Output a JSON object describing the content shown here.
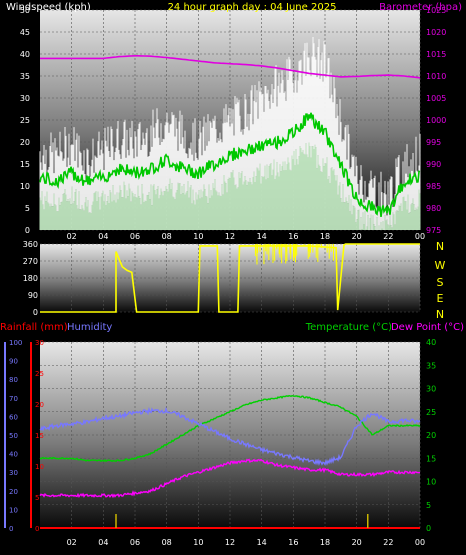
{
  "colors": {
    "background": "#000000",
    "wind_speed": "#ffffff",
    "wind_gust": "#ffffff",
    "wind_avg": "#00c800",
    "wind_low": "#c8f0c8",
    "barometer": "#e000e0",
    "direction": "#ffff00",
    "rainfall": "#ff0000",
    "humidity": "#7878ff",
    "temperature": "#00d000",
    "dew_point": "#ff00ff",
    "title": "#ffff00",
    "tick_text": "#ffffff"
  },
  "chart_data": [
    {
      "type": "line",
      "title": "24 hour graph day : 04 June 2025",
      "ylabel": "Windspeed (kph)",
      "y2label": "Barometer (hpa)",
      "ylim": [
        0,
        50
      ],
      "y2lim": [
        975,
        1025
      ],
      "yticks": [
        0,
        5,
        10,
        15,
        20,
        25,
        30,
        35,
        40,
        45,
        50
      ],
      "y2ticks": [
        975,
        980,
        985,
        990,
        995,
        1000,
        1005,
        1010,
        1015,
        1020,
        1025
      ],
      "xlim": [
        0,
        24
      ],
      "xticks": [
        "02",
        "04",
        "06",
        "08",
        "10",
        "12",
        "14",
        "16",
        "18",
        "20",
        "22",
        "00"
      ],
      "grid": true,
      "x": [
        0,
        1,
        2,
        3,
        4,
        5,
        6,
        7,
        8,
        9,
        10,
        11,
        12,
        13,
        14,
        15,
        16,
        17,
        18,
        19,
        20,
        21,
        22,
        23,
        24
      ],
      "series": [
        {
          "name": "",
          "axis": "left",
          "role": "gust",
          "values": [
            18,
            17,
            20,
            16,
            18,
            21,
            20,
            22,
            25,
            22,
            20,
            23,
            25,
            27,
            30,
            33,
            35,
            40,
            38,
            25,
            12,
            10,
            8,
            15,
            17
          ]
        },
        {
          "name": "",
          "axis": "left",
          "role": "average",
          "values": [
            12,
            11,
            13,
            11,
            12,
            14,
            13,
            14,
            16,
            14,
            13,
            15,
            17,
            18,
            19,
            20,
            22,
            26,
            22,
            15,
            7,
            5,
            4,
            11,
            12
          ]
        },
        {
          "name": "",
          "axis": "left",
          "role": "low",
          "values": [
            7,
            6,
            8,
            6,
            7,
            9,
            8,
            8,
            10,
            9,
            8,
            9,
            11,
            12,
            13,
            14,
            16,
            18,
            15,
            9,
            3,
            1,
            1,
            6,
            7
          ]
        },
        {
          "name": "Barometer",
          "axis": "right",
          "values": [
            1014,
            1014,
            1014,
            1014,
            1014,
            1014.4,
            1014.6,
            1014.5,
            1014.2,
            1013.8,
            1013.4,
            1013,
            1012.8,
            1012.6,
            1012.3,
            1011.8,
            1011.2,
            1010.6,
            1010.2,
            1009.8,
            1009.9,
            1010.1,
            1010.2,
            1010,
            1009.6
          ]
        }
      ]
    },
    {
      "type": "line",
      "ylim": [
        0,
        360
      ],
      "yticks": [
        0,
        90,
        180,
        270,
        360
      ],
      "compass_labels": [
        "N",
        "W",
        "S",
        "E",
        "N"
      ],
      "xlim": [
        0,
        24
      ],
      "grid": true,
      "x": [
        0,
        4.8,
        4.8,
        5.2,
        5.5,
        5.8,
        6.1,
        8,
        10,
        10.1,
        11.2,
        11.3,
        12.5,
        12.6,
        13,
        14,
        17,
        18.7,
        18.8,
        19.2,
        19.3,
        24
      ],
      "series": [
        {
          "name": "Wind direction",
          "values": [
            0,
            0,
            320,
            240,
            220,
            210,
            0,
            0,
            0,
            350,
            350,
            0,
            0,
            350,
            350,
            350,
            350,
            340,
            10,
            355,
            360,
            360
          ]
        }
      ]
    },
    {
      "type": "line",
      "xlim": [
        0,
        24
      ],
      "xticks": [
        "02",
        "04",
        "06",
        "08",
        "10",
        "12",
        "14",
        "16",
        "18",
        "20",
        "22",
        "00"
      ],
      "grid": true,
      "axes": {
        "humidity": {
          "label": "Humidity",
          "ylim": [
            0,
            100
          ],
          "ticks": [
            0,
            10,
            20,
            30,
            40,
            50,
            60,
            70,
            80,
            90,
            100
          ]
        },
        "rainfall": {
          "label": "Rainfall (mm)",
          "ylim": [
            0,
            30
          ],
          "ticks": [
            0,
            5,
            10,
            15,
            20,
            25,
            30
          ]
        },
        "temperature": {
          "label": "Temperature (°C)",
          "ylim": [
            0,
            40
          ],
          "ticks": [
            0,
            5,
            10,
            15,
            20,
            25,
            30,
            35,
            40
          ]
        },
        "dew_point_label": "Dew Point (°C)"
      },
      "x": [
        0,
        1,
        2,
        3,
        4,
        5,
        6,
        7,
        8,
        9,
        10,
        11,
        12,
        13,
        14,
        15,
        16,
        17,
        18,
        19,
        20,
        21,
        22,
        23,
        24
      ],
      "series": [
        {
          "name": "Humidity",
          "axis": "humidity",
          "values": [
            53,
            55,
            56,
            57,
            59,
            60,
            62,
            63,
            63,
            60,
            56,
            52,
            48,
            45,
            42,
            40,
            38,
            36,
            35,
            38,
            55,
            62,
            57,
            58,
            57
          ]
        },
        {
          "name": "Temperature (°C)",
          "axis": "temperature",
          "values": [
            15,
            15,
            15,
            14.5,
            14.5,
            14.5,
            15,
            16,
            18,
            20,
            22,
            23.5,
            25,
            26.5,
            27.5,
            28,
            28.5,
            28,
            27,
            26,
            24,
            20,
            22,
            22,
            22
          ]
        },
        {
          "name": "Dew Point (°C)",
          "axis": "temperature",
          "values": [
            7,
            7,
            7,
            7,
            7,
            7,
            7.5,
            8,
            9.5,
            11,
            12,
            13,
            14,
            14.5,
            14.5,
            13.5,
            13,
            12.5,
            12.5,
            11.5,
            11.5,
            11.5,
            12,
            12,
            12
          ]
        },
        {
          "name": "Rainfall (mm)",
          "axis": "rainfall",
          "values": [
            0,
            0,
            0,
            0,
            0,
            0,
            0,
            0,
            0,
            0,
            0,
            0,
            0,
            0,
            0,
            0,
            0,
            0,
            0,
            0,
            0,
            0,
            0,
            0,
            0
          ]
        }
      ]
    }
  ]
}
